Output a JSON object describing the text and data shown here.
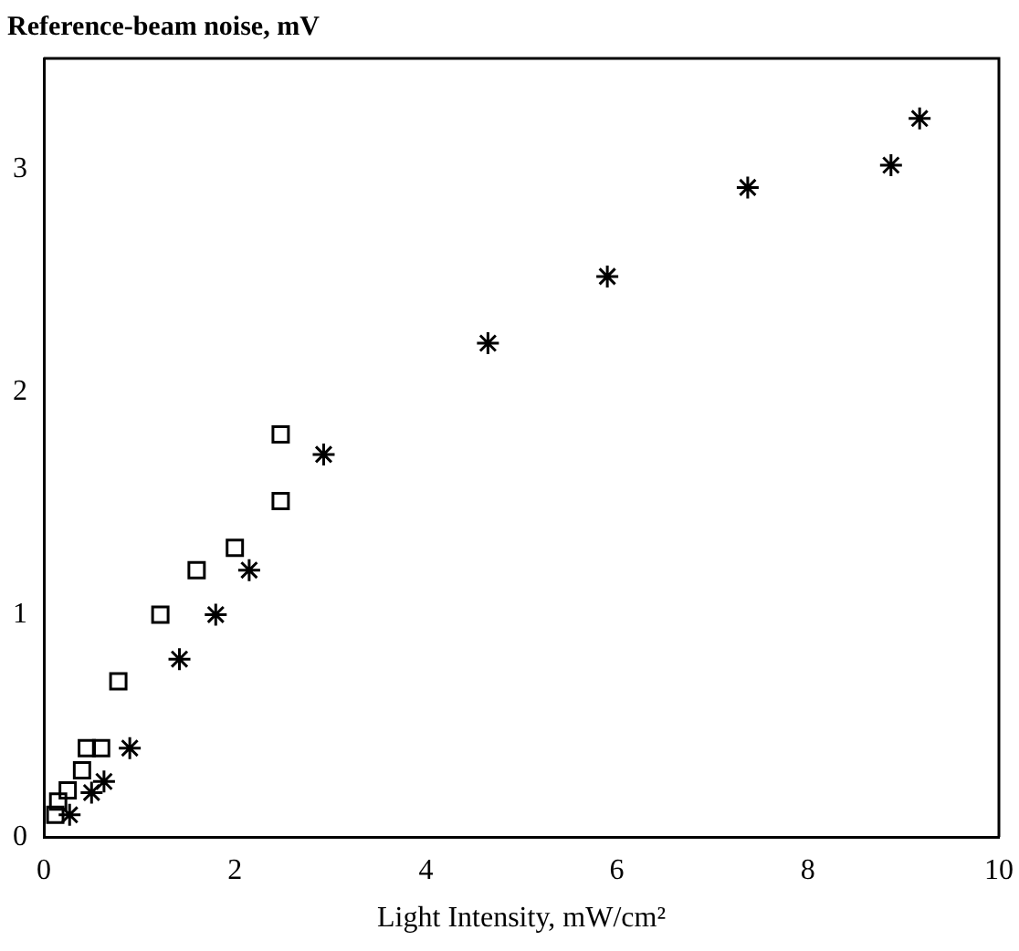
{
  "chart_data": {
    "type": "scatter",
    "xlabel": "Light Intensity, mW/cm²",
    "ylabel": "Reference-beam noise, mV",
    "xlim": [
      0,
      10
    ],
    "xticks": [
      0,
      2,
      4,
      6,
      8,
      10
    ],
    "ylim": [
      0,
      3.5
    ],
    "yticks": [
      0,
      1,
      2,
      3
    ],
    "grid": false,
    "legend": false,
    "series": [
      {
        "color": "#000000",
        "marker": "square",
        "x": [
          0.12,
          0.15,
          0.25,
          0.4,
          0.45,
          0.6,
          0.78,
          1.22,
          1.6,
          2.0,
          2.48,
          2.48
        ],
        "values": [
          0.1,
          0.16,
          0.21,
          0.3,
          0.4,
          0.4,
          0.7,
          1.0,
          1.2,
          1.3,
          1.51,
          1.81
        ]
      },
      {
        "color": "#000000",
        "marker": "cross",
        "x": [
          0.27,
          0.5,
          0.63,
          0.9,
          1.42,
          1.8,
          2.15,
          2.93,
          4.65,
          5.9,
          7.37,
          8.87,
          9.17
        ],
        "values": [
          0.1,
          0.2,
          0.25,
          0.4,
          0.8,
          1.0,
          1.2,
          1.72,
          2.22,
          2.52,
          2.92,
          3.02,
          3.23
        ]
      }
    ]
  }
}
